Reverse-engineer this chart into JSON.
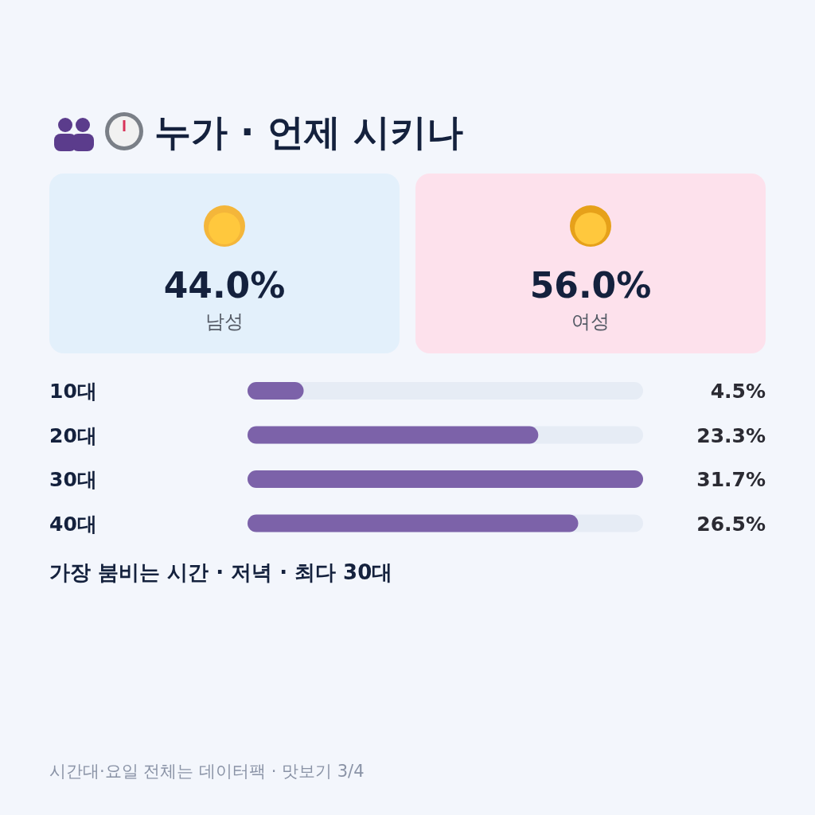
{
  "chart_data": [
    {
      "type": "other",
      "title": "누가 · 언제 시키나",
      "categories": [
        "남성",
        "여성"
      ],
      "values": [
        44.0,
        56.0
      ],
      "value_labels": [
        "44.0%",
        "56.0%"
      ],
      "colors": [
        "#e3f0fb",
        "#fde1ec"
      ]
    },
    {
      "type": "bar",
      "orientation": "horizontal",
      "categories": [
        "10대",
        "20대",
        "30대",
        "40대"
      ],
      "values": [
        4.5,
        23.3,
        31.7,
        26.5
      ],
      "value_labels": [
        "4.5%",
        "23.3%",
        "31.7%",
        "26.5%"
      ],
      "color": "#7c62a9",
      "annotations": [
        "가장 붐비는 시간 · 저녁 · 최다 30대",
        "시간대·요일 전체는 데이터팩 · 맛보기 3/4"
      ]
    }
  ]
}
